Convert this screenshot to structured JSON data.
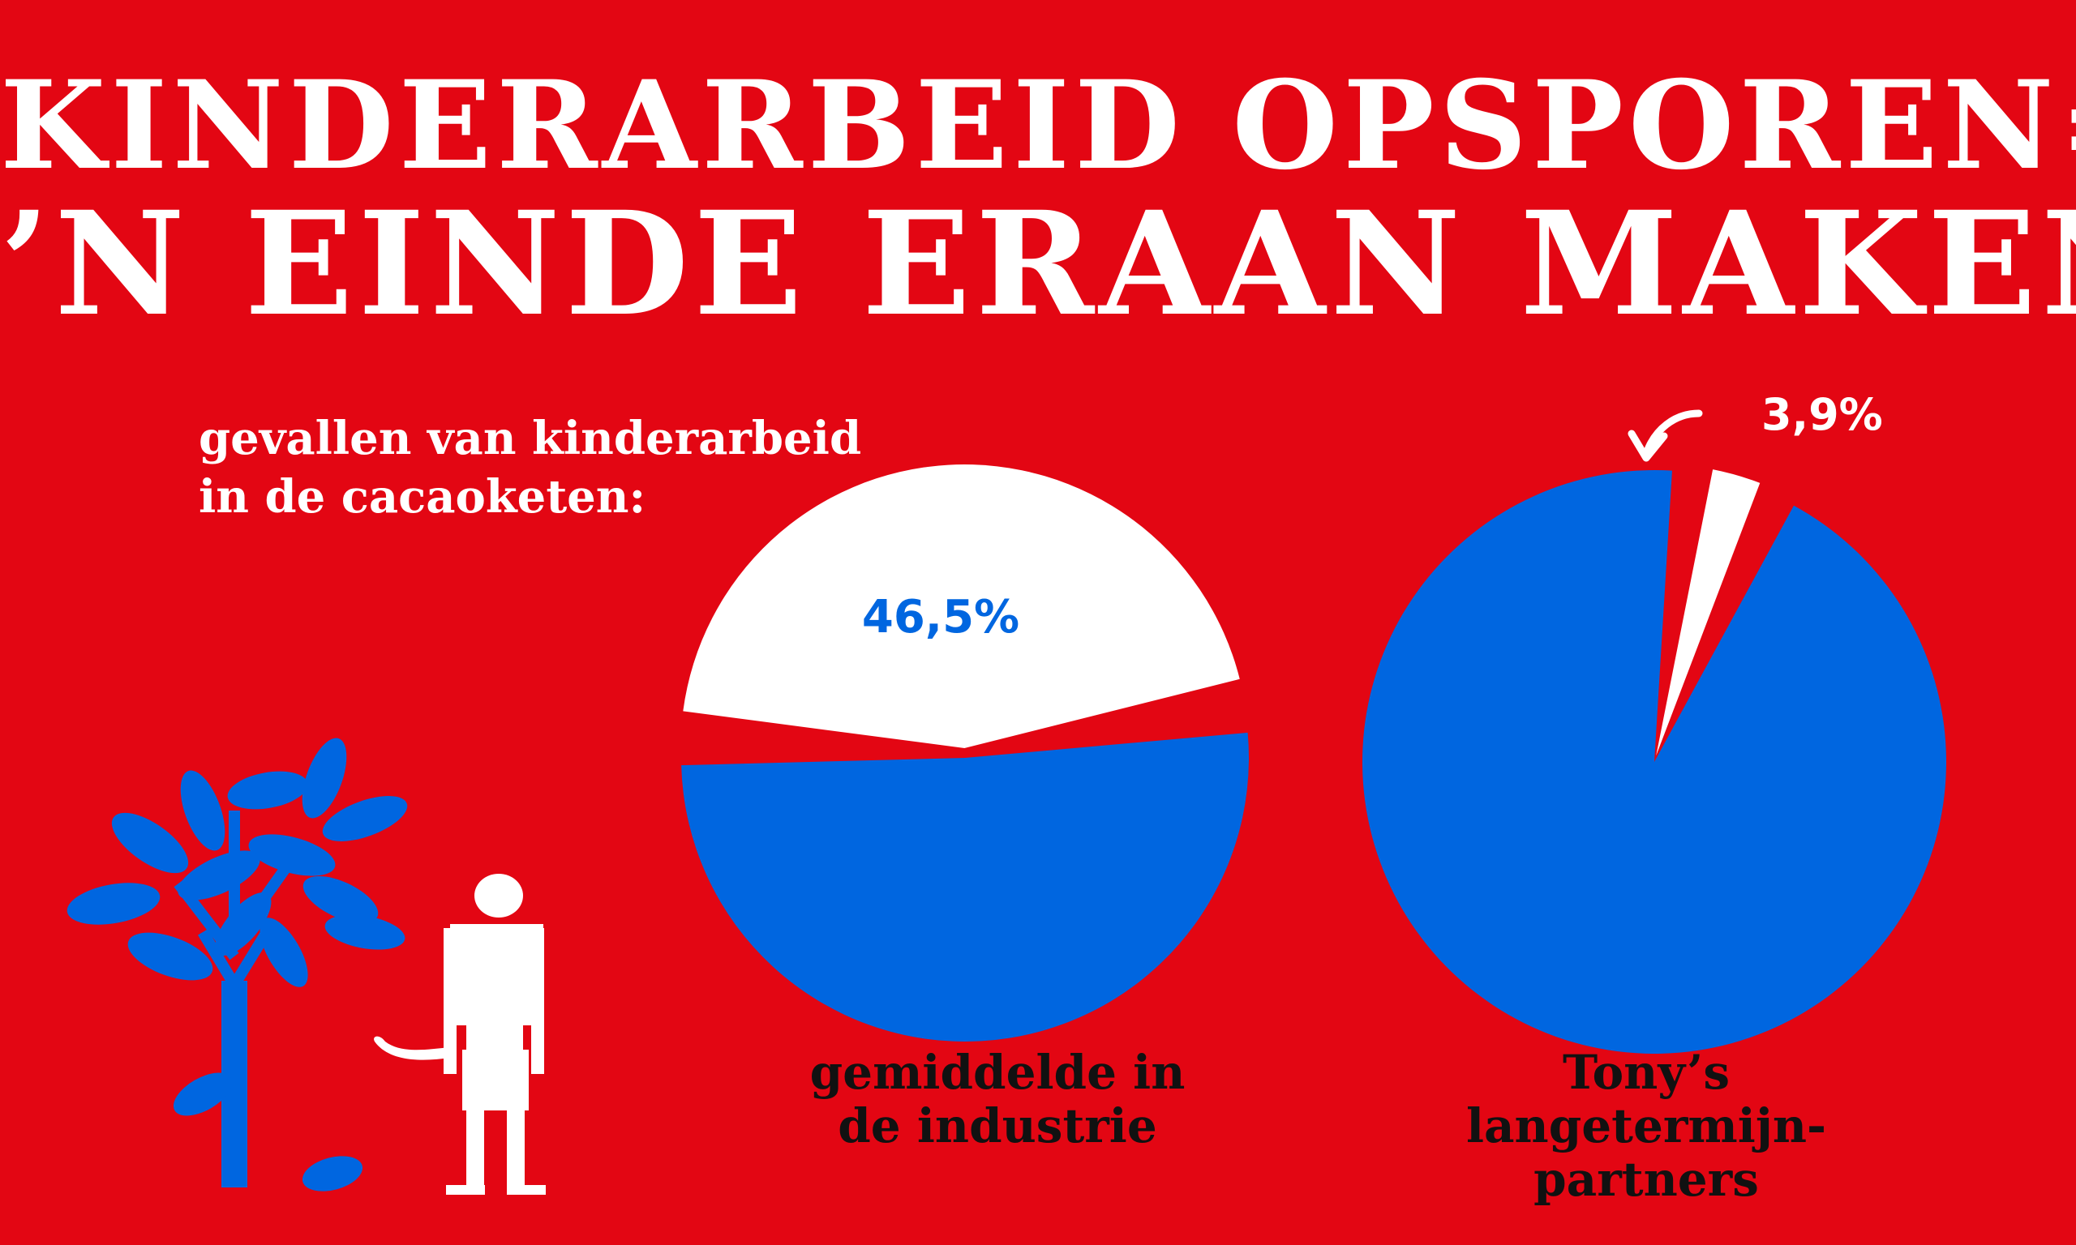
{
  "title_lines": [
    "KINDERARBEID OPSPOREN=",
    "’N EINDE ERAAN MAKEN"
  ],
  "subtitle_lines": [
    "gevallen van kinderarbeid",
    "in de cacaoketen:"
  ],
  "colors": {
    "background": "#e30613",
    "blue": "#0066e0",
    "white": "#ffffff",
    "text_dark": "#111111"
  },
  "icons": [
    "cocoa-tree-icon",
    "child-worker-icon"
  ],
  "chart_data": [
    {
      "type": "pie",
      "name_lines": [
        "gemiddelde in",
        "de industrie"
      ],
      "slices": [
        {
          "label": "46,5%",
          "value": 46.5,
          "color": "#ffffff"
        },
        {
          "label": "",
          "value": 53.5,
          "color": "#0066e0"
        }
      ]
    },
    {
      "type": "pie",
      "name_lines": [
        "Tony’s",
        "langetermijn-",
        "partners"
      ],
      "slices": [
        {
          "label": "3,9%",
          "value": 3.9,
          "color": "#ffffff"
        },
        {
          "label": "",
          "value": 96.1,
          "color": "#0066e0"
        }
      ]
    }
  ]
}
